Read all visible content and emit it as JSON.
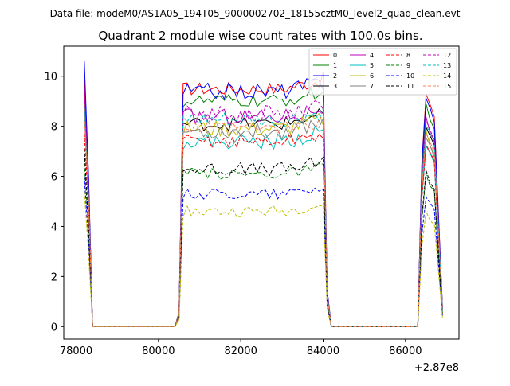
{
  "chart_data": {
    "type": "line",
    "suptitle": "Data file: modeM0/AS1A05_194T05_9000002702_18155cztM0_level2_quad_clean.evt",
    "title": "Quadrant 2 module wise count rates with 100.0s bins.",
    "xlabel": "",
    "ylabel": "",
    "x_offset_label": "+2.87e8",
    "xlim": [
      77700,
      87300
    ],
    "ylim": [
      -0.5,
      11.2
    ],
    "x_ticks": [
      78000,
      80000,
      82000,
      84000,
      86000
    ],
    "x_tick_labels": [
      "78000",
      "80000",
      "82000",
      "84000",
      "86000"
    ],
    "y_ticks": [
      0,
      2,
      4,
      6,
      8,
      10
    ],
    "y_tick_labels": [
      "0",
      "2",
      "4",
      "6",
      "8",
      "10"
    ],
    "grid": false,
    "legend_position": "top-right",
    "segments": [
      {
        "start": 78200,
        "end": 78400,
        "gap_until": 80400
      },
      {
        "start": 80500,
        "end": 84100,
        "gap_until": 84200
      },
      {
        "start": 84200,
        "end": 84200,
        "gap_until": 86300
      },
      {
        "start": 86400,
        "end": 86900,
        "gap_until": null
      }
    ],
    "series": [
      {
        "name": "0",
        "color": "#ff0000",
        "style": "solid",
        "level": 9.5,
        "peak": 9.9,
        "spread": 0.25
      },
      {
        "name": "1",
        "color": "#008000",
        "style": "solid",
        "level": 9.0,
        "peak": 9.2,
        "spread": 0.25
      },
      {
        "name": "2",
        "color": "#0000ff",
        "style": "solid",
        "level": 9.4,
        "peak": 10.6,
        "spread": 0.3
      },
      {
        "name": "3",
        "color": "#000000",
        "style": "solid",
        "level": 8.1,
        "peak": 9.1,
        "spread": 0.25
      },
      {
        "name": "4",
        "color": "#bf00bf",
        "style": "solid",
        "level": 8.4,
        "peak": 9.5,
        "spread": 0.3
      },
      {
        "name": "5",
        "color": "#00bfbf",
        "style": "solid",
        "level": 7.4,
        "peak": 8.8,
        "spread": 0.3
      },
      {
        "name": "6",
        "color": "#bfbf00",
        "style": "solid",
        "level": 7.9,
        "peak": 8.9,
        "spread": 0.3
      },
      {
        "name": "7",
        "color": "#808080",
        "style": "solid",
        "level": 7.8,
        "peak": 8.6,
        "spread": 0.3
      },
      {
        "name": "8",
        "color": "#ff0000",
        "style": "dashed",
        "level": 7.4,
        "peak": 7.7,
        "spread": 0.25
      },
      {
        "name": "9",
        "color": "#008000",
        "style": "dashed",
        "level": 6.1,
        "peak": 6.5,
        "spread": 0.2
      },
      {
        "name": "10",
        "color": "#0000ff",
        "style": "dashed",
        "level": 5.3,
        "peak": 6.0,
        "spread": 0.2
      },
      {
        "name": "11",
        "color": "#000000",
        "style": "dashed",
        "level": 6.3,
        "peak": 7.1,
        "spread": 0.25
      },
      {
        "name": "12",
        "color": "#bf00bf",
        "style": "dashed",
        "level": 8.5,
        "peak": 9.0,
        "spread": 0.3
      },
      {
        "name": "13",
        "color": "#00bfbf",
        "style": "dashed",
        "level": 8.2,
        "peak": 8.8,
        "spread": 0.3
      },
      {
        "name": "14",
        "color": "#bfbf00",
        "style": "dashed",
        "level": 4.6,
        "peak": 5.4,
        "spread": 0.2
      },
      {
        "name": "15",
        "color": "#ff7f50",
        "style": "dashed",
        "level": 7.9,
        "peak": 8.4,
        "spread": 0.25
      }
    ]
  }
}
